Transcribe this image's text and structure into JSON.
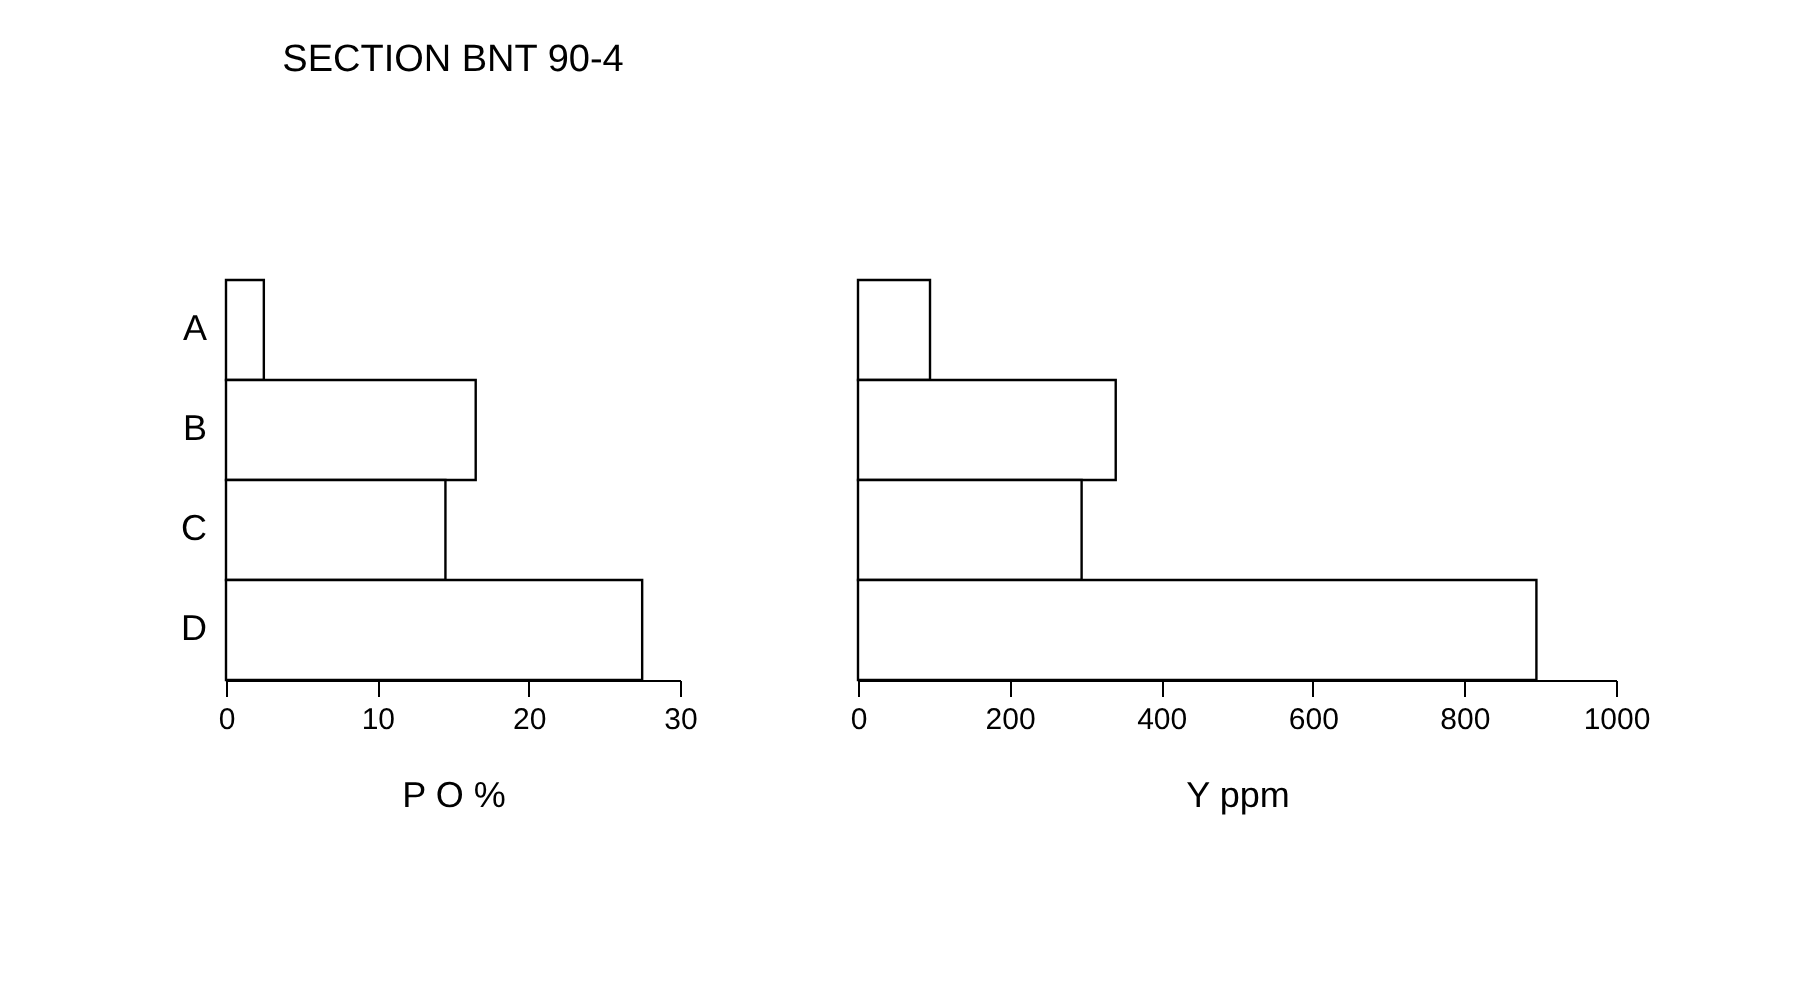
{
  "chart_data": [
    {
      "type": "bar",
      "title": "SECTION BNT 90-4",
      "orientation": "horizontal",
      "categories": [
        "A",
        "B",
        "C",
        "D"
      ],
      "values": [
        2.5,
        16.5,
        14.5,
        27.5
      ],
      "color": "#ffffff",
      "xlim": [
        0,
        30
      ],
      "xticks": [
        0,
        10,
        20,
        30
      ],
      "xlabel": "P O %",
      "grid": false
    },
    {
      "type": "bar",
      "orientation": "horizontal",
      "categories": [
        null,
        null,
        null,
        null
      ],
      "values": [
        95,
        340,
        295,
        895
      ],
      "color": "#ffffff",
      "xlim": [
        0,
        1000
      ],
      "xticks": [
        0,
        200,
        400,
        600,
        800,
        1000
      ],
      "xlabel": "Y ppm",
      "tick_labels": "x",
      "grid": false
    }
  ]
}
